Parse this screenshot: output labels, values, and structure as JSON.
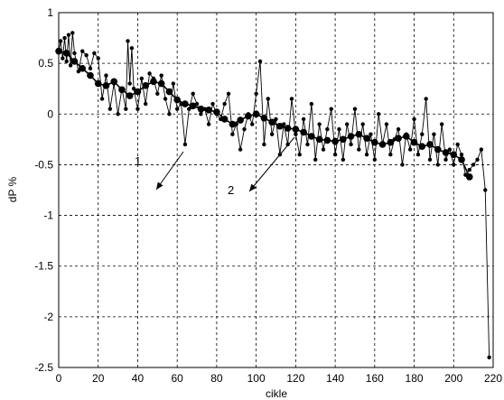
{
  "chart_data": {
    "type": "line",
    "title": "",
    "xlabel": "cikle",
    "ylabel": "dP %",
    "xlim": [
      0,
      220
    ],
    "ylim": [
      -2.5,
      1
    ],
    "xticks": [
      0,
      20,
      40,
      60,
      80,
      100,
      120,
      140,
      160,
      180,
      200,
      220
    ],
    "yticks": [
      1,
      0.5,
      0,
      -0.5,
      -1,
      -1.5,
      -2,
      -2.5
    ],
    "xtick_labels": [
      "0",
      "20",
      "40",
      "60",
      "80",
      "100",
      "120",
      "140",
      "160",
      "180",
      "200",
      "220"
    ],
    "ytick_labels": [
      "1",
      "0.5",
      "0",
      "-0.5",
      "-1",
      "-1.5",
      "-2",
      "-2.5"
    ],
    "grid": true,
    "series": [
      {
        "name": "1",
        "marker": "dot",
        "values": [
          [
            0,
            0.62
          ],
          [
            1,
            0.72
          ],
          [
            2,
            0.55
          ],
          [
            3,
            0.75
          ],
          [
            4,
            0.52
          ],
          [
            5,
            0.78
          ],
          [
            6,
            0.48
          ],
          [
            7,
            0.8
          ],
          [
            8,
            0.6
          ],
          [
            10,
            0.42
          ],
          [
            12,
            0.62
          ],
          [
            14,
            0.58
          ],
          [
            16,
            0.45
          ],
          [
            18,
            0.6
          ],
          [
            20,
            0.55
          ],
          [
            22,
            0.15
          ],
          [
            24,
            0.38
          ],
          [
            26,
            0.05
          ],
          [
            28,
            0.3
          ],
          [
            30,
            0.0
          ],
          [
            32,
            0.25
          ],
          [
            34,
            0.05
          ],
          [
            35,
            0.72
          ],
          [
            36,
            0.3
          ],
          [
            37,
            0.65
          ],
          [
            38,
            0.25
          ],
          [
            40,
            0.05
          ],
          [
            42,
            0.35
          ],
          [
            44,
            0.1
          ],
          [
            46,
            0.4
          ],
          [
            48,
            0.35
          ],
          [
            50,
            0.2
          ],
          [
            52,
            0.38
          ],
          [
            54,
            0.15
          ],
          [
            56,
            0.0
          ],
          [
            58,
            0.3
          ],
          [
            60,
            0.05
          ],
          [
            62,
            0.1
          ],
          [
            64,
            -0.3
          ],
          [
            66,
            0.05
          ],
          [
            68,
            0.2
          ],
          [
            70,
            0.1
          ],
          [
            72,
            0.0
          ],
          [
            74,
            0.05
          ],
          [
            76,
            -0.1
          ],
          [
            78,
            0.1
          ],
          [
            80,
            0.0
          ],
          [
            82,
            -0.05
          ],
          [
            84,
            0.1
          ],
          [
            86,
            0.2
          ],
          [
            88,
            -0.2
          ],
          [
            90,
            -0.1
          ],
          [
            92,
            -0.35
          ],
          [
            94,
            -0.15
          ],
          [
            96,
            0.0
          ],
          [
            98,
            -0.1
          ],
          [
            100,
            0.2
          ],
          [
            102,
            0.52
          ],
          [
            104,
            -0.3
          ],
          [
            106,
            0.15
          ],
          [
            108,
            -0.2
          ],
          [
            110,
            -0.05
          ],
          [
            112,
            -0.4
          ],
          [
            114,
            -0.1
          ],
          [
            116,
            -0.3
          ],
          [
            118,
            0.15
          ],
          [
            120,
            -0.2
          ],
          [
            122,
            -0.4
          ],
          [
            124,
            -0.05
          ],
          [
            126,
            -0.3
          ],
          [
            128,
            0.1
          ],
          [
            130,
            -0.45
          ],
          [
            132,
            -0.1
          ],
          [
            134,
            -0.35
          ],
          [
            136,
            -0.15
          ],
          [
            138,
            0.05
          ],
          [
            140,
            -0.4
          ],
          [
            142,
            -0.15
          ],
          [
            144,
            -0.45
          ],
          [
            146,
            -0.1
          ],
          [
            148,
            -0.3
          ],
          [
            150,
            0.05
          ],
          [
            152,
            -0.35
          ],
          [
            154,
            -0.1
          ],
          [
            156,
            -0.4
          ],
          [
            158,
            -0.2
          ],
          [
            160,
            -0.45
          ],
          [
            162,
            0.0
          ],
          [
            164,
            -0.3
          ],
          [
            166,
            -0.1
          ],
          [
            168,
            -0.4
          ],
          [
            170,
            -0.25
          ],
          [
            172,
            -0.15
          ],
          [
            174,
            -0.5
          ],
          [
            176,
            -0.2
          ],
          [
            178,
            -0.35
          ],
          [
            180,
            -0.05
          ],
          [
            182,
            -0.4
          ],
          [
            184,
            -0.2
          ],
          [
            186,
            0.15
          ],
          [
            188,
            -0.45
          ],
          [
            190,
            -0.2
          ],
          [
            192,
            -0.5
          ],
          [
            194,
            -0.1
          ],
          [
            196,
            -0.45
          ],
          [
            198,
            -0.35
          ],
          [
            200,
            -0.5
          ],
          [
            202,
            -0.3
          ],
          [
            204,
            -0.4
          ],
          [
            206,
            -0.6
          ],
          [
            208,
            -0.55
          ],
          [
            210,
            -0.5
          ],
          [
            212,
            -0.45
          ],
          [
            214,
            -0.35
          ],
          [
            216,
            -0.75
          ],
          [
            218,
            -2.4
          ]
        ]
      },
      {
        "name": "2",
        "marker": "heavy-dot",
        "values": [
          [
            0,
            0.62
          ],
          [
            4,
            0.6
          ],
          [
            8,
            0.52
          ],
          [
            12,
            0.45
          ],
          [
            16,
            0.38
          ],
          [
            20,
            0.3
          ],
          [
            24,
            0.28
          ],
          [
            28,
            0.32
          ],
          [
            32,
            0.24
          ],
          [
            36,
            0.18
          ],
          [
            40,
            0.22
          ],
          [
            44,
            0.28
          ],
          [
            48,
            0.32
          ],
          [
            52,
            0.3
          ],
          [
            56,
            0.22
          ],
          [
            60,
            0.14
          ],
          [
            64,
            0.1
          ],
          [
            68,
            0.08
          ],
          [
            72,
            0.05
          ],
          [
            76,
            0.04
          ],
          [
            80,
            0.02
          ],
          [
            84,
            -0.05
          ],
          [
            88,
            -0.1
          ],
          [
            92,
            -0.06
          ],
          [
            96,
            -0.02
          ],
          [
            100,
            0.0
          ],
          [
            104,
            -0.04
          ],
          [
            108,
            -0.08
          ],
          [
            112,
            -0.12
          ],
          [
            116,
            -0.14
          ],
          [
            120,
            -0.15
          ],
          [
            124,
            -0.18
          ],
          [
            128,
            -0.22
          ],
          [
            132,
            -0.25
          ],
          [
            136,
            -0.26
          ],
          [
            140,
            -0.27
          ],
          [
            144,
            -0.25
          ],
          [
            148,
            -0.22
          ],
          [
            152,
            -0.2
          ],
          [
            156,
            -0.24
          ],
          [
            160,
            -0.28
          ],
          [
            164,
            -0.3
          ],
          [
            168,
            -0.28
          ],
          [
            172,
            -0.24
          ],
          [
            176,
            -0.22
          ],
          [
            180,
            -0.28
          ],
          [
            184,
            -0.32
          ],
          [
            188,
            -0.3
          ],
          [
            192,
            -0.35
          ],
          [
            196,
            -0.38
          ],
          [
            200,
            -0.4
          ],
          [
            204,
            -0.45
          ],
          [
            208,
            -0.62
          ]
        ]
      }
    ],
    "annotations": [
      {
        "text": "1",
        "x": 40,
        "y": -0.7
      },
      {
        "text": "2",
        "x": 88,
        "y": -0.7
      }
    ]
  }
}
